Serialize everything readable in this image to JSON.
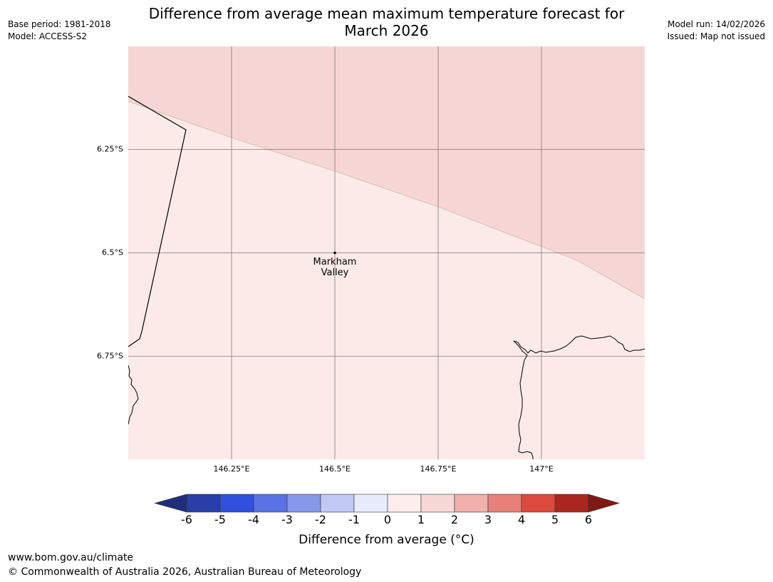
{
  "header": {
    "base_period": "Base period: 1981-2018",
    "model": "Model: ACCESS-S2",
    "model_run": "Model run: 14/02/2026",
    "issued": "Issued: Map not issued"
  },
  "title_line1": "Difference from average mean maximum temperature forecast for",
  "title_line2": "March 2026",
  "map": {
    "lat_labels": [
      "6.25°S",
      "6.5°S",
      "6.75°S"
    ],
    "lon_labels": [
      "146.25°E",
      "146.5°E",
      "146.75°E",
      "147°E"
    ],
    "place": {
      "name_line1": "Markham",
      "name_line2": "Valley"
    },
    "region_colors": {
      "band_1_to_2": "#f6d6d4",
      "band_0_to_1": "#fbeae8"
    }
  },
  "colorbar": {
    "title": "Difference from average (°C)",
    "ticks": [
      "-6",
      "-5",
      "-4",
      "-3",
      "-2",
      "-1",
      "0",
      "1",
      "2",
      "3",
      "4",
      "5",
      "6"
    ],
    "colors": [
      "#2a3ea8",
      "#3150de",
      "#5a72e4",
      "#8797ea",
      "#c1c8f4",
      "#e8ebfc",
      "#fdeeed",
      "#f8d8d6",
      "#f0b0ab",
      "#e68079",
      "#db4b3e",
      "#a9271e"
    ],
    "extend_low_color": "#1f2e7a",
    "extend_high_color": "#7e1a14"
  },
  "footer": {
    "url": "www.bom.gov.au/climate",
    "copyright": "© Commonwealth of Australia 2026, Australian Bureau of Meteorology"
  }
}
